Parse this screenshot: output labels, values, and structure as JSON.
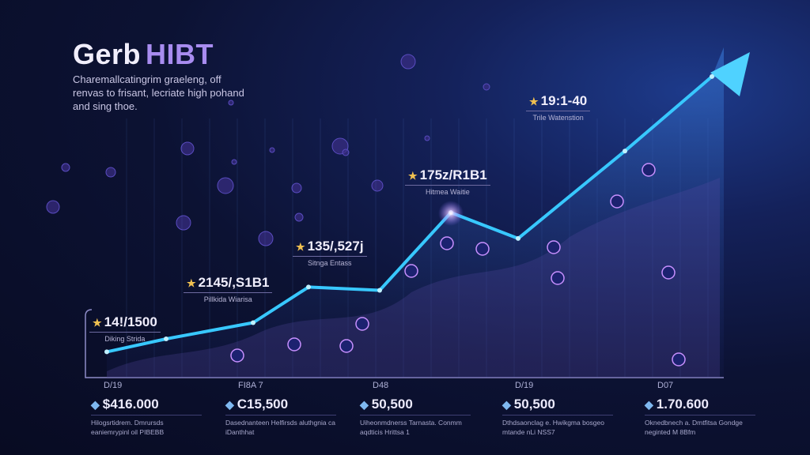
{
  "header": {
    "title_main": "Gerb",
    "title_accent": "HIBT",
    "subtitle": "Charemallcatingrim graeleng, off renvas to frisant, lecriate high pohand and sing thoe."
  },
  "chart_data": {
    "type": "line",
    "title": "Gerb HIBT",
    "x": [
      0,
      1,
      2,
      3,
      4,
      5,
      6,
      7,
      8
    ],
    "values": [
      6,
      10,
      15,
      26,
      25,
      49,
      41,
      68,
      91
    ],
    "ylim": [
      0,
      100
    ],
    "grid": true,
    "annotations": [
      {
        "value": "14!/1500",
        "label": "Diking Strida",
        "point": 0
      },
      {
        "value": "2145/,S1B1",
        "label": "Pillkida Wiarisa",
        "point": 3
      },
      {
        "value": "135/,527j",
        "label": "Sitnga Entass",
        "point": 4
      },
      {
        "value": "175z/R1B1",
        "label": "Hitmea Waitie",
        "point": 5
      },
      {
        "value": "19:1-40",
        "label": "Trile Watenstion",
        "point": 7
      }
    ]
  },
  "footer": {
    "columns": [
      {
        "date": "D/19",
        "amount": "$416.000",
        "desc": "Hilogsrtidrem. Dmrursds eaniemrypinl oil PIBEBB"
      },
      {
        "date": "FI8A 7",
        "amount": "C15,500",
        "desc": "Dasednanteen Helfirsds aluthgnia ca iDanthhat"
      },
      {
        "date": "D48",
        "amount": "50,500",
        "desc": "Uiheonmdnerss Tarnasta. Conmm aqdticis Hrittsa 1"
      },
      {
        "date": "D/19",
        "amount": "50,500",
        "desc": "Dthdsaonclag e. Hwikgma bosgeo mtande nLi NSS7"
      },
      {
        "date": "D07",
        "amount": "1.70.600",
        "desc": "Oknedbnech a. Dmtfitsa Gondge neginted M 8Bfm"
      }
    ]
  },
  "colors": {
    "line": "#38c8ff",
    "accent": "#a88cf0",
    "node": "#c890ff"
  }
}
